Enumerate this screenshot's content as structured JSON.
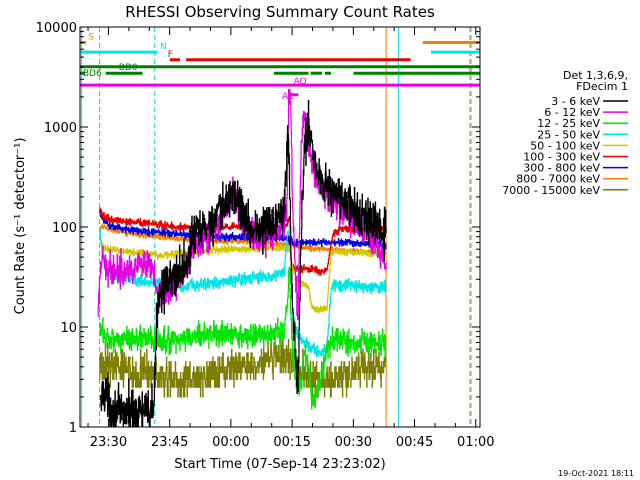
{
  "chart_data": {
    "type": "line",
    "title": "RHESSI Observing Summary Count Rates",
    "xlabel": "Start Time (07-Sep-14 23:23:02)",
    "ylabel": "Count Rate (s⁻¹ detector⁻¹)",
    "yscale": "log",
    "ylim": [
      1,
      10000
    ],
    "xlim_minutes_from_23_23_02": [
      0,
      98
    ],
    "x_ticks": [
      {
        "label": "23:30",
        "t": 6.97
      },
      {
        "label": "23:45",
        "t": 21.97
      },
      {
        "label": "00:00",
        "t": 36.97
      },
      {
        "label": "00:15",
        "t": 51.97
      },
      {
        "label": "00:30",
        "t": 66.97
      },
      {
        "label": "00:45",
        "t": 81.97
      },
      {
        "label": "01:00",
        "t": 96.97
      }
    ],
    "y_ticks": [
      "1",
      "10",
      "100",
      "1000",
      "10000"
    ],
    "footer_date": "19-Oct-2021 18:11",
    "legend": {
      "header": [
        "Det 1,3,6,9,",
        "FDecim 1"
      ],
      "entries": [
        {
          "label": "3 - 6 keV",
          "color": "#000000"
        },
        {
          "label": "6 - 12 keV",
          "color": "#e600e6"
        },
        {
          "label": "12 - 25 keV",
          "color": "#00e600"
        },
        {
          "label": "25 - 50 keV",
          "color": "#00e6e6"
        },
        {
          "label": "50 - 100 keV",
          "color": "#d2c800"
        },
        {
          "label": "100 - 300 keV",
          "color": "#e60000"
        },
        {
          "label": "300 - 800 keV",
          "color": "#0000e6"
        },
        {
          "label": "800 - 7000 keV",
          "color": "#f08200"
        },
        {
          "label": "7000 - 15000 keV",
          "color": "#7d7d00"
        }
      ]
    },
    "flag_bars": [
      {
        "label": "S",
        "color": "#f08200",
        "segments": [
          [
            0,
            1.5
          ]
        ],
        "level": 7000
      },
      {
        "label": "",
        "color": "#f08200",
        "segments": [
          [
            84,
            98
          ]
        ],
        "level": 7000
      },
      {
        "label": "N",
        "color": "#00e6e6",
        "segments": [
          [
            0,
            19
          ]
        ],
        "level": 5600
      },
      {
        "label": "",
        "color": "#00e6e6",
        "segments": [
          [
            86,
            98
          ]
        ],
        "level": 5600
      },
      {
        "label": "F",
        "color": "#e60000",
        "segments": [
          [
            22,
            24.5
          ],
          [
            26,
            81
          ]
        ],
        "level": 4700
      },
      {
        "label": "BD0",
        "color": "#008000",
        "segments": [
          [
            0,
            98
          ]
        ],
        "level": 4000
      },
      {
        "label": "BD6",
        "color": "#008000",
        "segments": [
          [
            0,
            1.3
          ],
          [
            6.3,
            15.3
          ],
          [
            47.5,
            56
          ],
          [
            60,
            61.5
          ],
          [
            67,
            98
          ]
        ],
        "level": 3450
      },
      {
        "label": "",
        "color": "#008000",
        "segments": [
          [
            56.5,
            59.3
          ]
        ],
        "level": 3450
      },
      {
        "label": "AQ",
        "color": "#e600e6",
        "segments": [
          [
            0,
            98
          ]
        ],
        "level": 2620
      },
      {
        "label": "A1",
        "color": "#e600e6",
        "segments": [
          [
            51.5,
            53.5
          ]
        ],
        "level": 2100
      }
    ],
    "vertical_markers": [
      {
        "t": 0.4,
        "color": "#00e6e6",
        "style": "solid"
      },
      {
        "t": 4.8,
        "color": "#f08200",
        "style": "dashed"
      },
      {
        "t": 18.3,
        "color": "#00e6e6",
        "style": "dashed"
      },
      {
        "t": 75.0,
        "color": "#f08200",
        "style": "solid"
      },
      {
        "t": 78.0,
        "color": "#00e6e6",
        "style": "solid"
      },
      {
        "t": 95.5,
        "color": "#00e6e6",
        "style": "dashed"
      },
      {
        "t": 95.8,
        "color": "#f08200",
        "style": "dashed"
      }
    ],
    "series": [
      {
        "name": "3 - 6 keV",
        "color": "#000000",
        "noise": 0.22,
        "x": [
          5,
          5.6,
          6.2,
          7,
          8,
          10,
          12,
          14,
          16,
          18,
          19,
          20,
          21.3,
          22,
          24,
          26,
          27,
          27.5,
          28,
          30,
          32,
          34,
          36,
          37.5,
          39,
          40.3,
          42,
          44,
          46,
          48,
          50,
          50.8,
          51.3,
          51.8,
          52.5,
          53.4,
          53.9,
          54.5,
          55,
          56,
          57,
          58,
          60,
          62,
          64,
          66,
          68,
          70,
          72,
          74,
          75
        ],
        "y": [
          1.5,
          2.5,
          2.2,
          1.8,
          1.5,
          1.4,
          1.5,
          1.5,
          1.4,
          1.5,
          18,
          28,
          25,
          28,
          35,
          42,
          60,
          80,
          85,
          95,
          110,
          130,
          180,
          220,
          180,
          120,
          95,
          95,
          105,
          120,
          170,
          850,
          300,
          30,
          8,
          2.2,
          30,
          200,
          700,
          1100,
          600,
          350,
          280,
          220,
          190,
          160,
          130,
          120,
          100,
          95,
          85
        ]
      },
      {
        "name": "6 - 12 keV",
        "color": "#e600e6",
        "noise": 0.15,
        "x": [
          4.4,
          5,
          5.4,
          6.2,
          8,
          10,
          12,
          14,
          16,
          18,
          19,
          20,
          21.3,
          22,
          24,
          26,
          27,
          28,
          30,
          32,
          34,
          36,
          37.3,
          39,
          40,
          42,
          44,
          46,
          48,
          50,
          50.7,
          51.1,
          51.5,
          52,
          52.8,
          53.4,
          53.8,
          54.2,
          54.9,
          55.5,
          56.5,
          58,
          60,
          62,
          64,
          66,
          68,
          70,
          72,
          74,
          75
        ],
        "y": [
          12,
          42,
          45,
          40,
          38,
          38,
          39,
          40,
          40,
          36,
          22,
          24,
          21,
          22,
          30,
          37,
          45,
          60,
          70,
          85,
          110,
          160,
          220,
          150,
          110,
          85,
          75,
          80,
          95,
          110,
          160,
          1900,
          2200,
          200,
          28,
          14,
          120,
          700,
          1400,
          1000,
          500,
          300,
          230,
          180,
          150,
          130,
          110,
          90,
          70,
          50,
          40
        ]
      },
      {
        "name": "12 - 25 keV",
        "color": "#00e600",
        "noise": 0.12,
        "x": [
          4.8,
          5.5,
          6.5,
          10,
          15,
          20,
          25,
          30,
          35,
          40,
          45,
          48,
          50,
          50.9,
          51.3,
          51.6,
          52.2,
          53,
          54,
          55,
          56,
          56.7,
          57.5,
          59,
          60.5,
          62,
          66,
          70,
          75
        ],
        "y": [
          9,
          9,
          8,
          7.5,
          8,
          7,
          7.5,
          8.5,
          8.5,
          8,
          8.5,
          8.5,
          9,
          20,
          40,
          15,
          5,
          3,
          2.5,
          6,
          4,
          2,
          1.8,
          3,
          6,
          7.5,
          7,
          7,
          6.5
        ]
      },
      {
        "name": "25 - 50 keV",
        "color": "#00e6e6",
        "noise": 0.06,
        "x": [
          4.8,
          5.5,
          7,
          10,
          15,
          20,
          25,
          30,
          35,
          40,
          45,
          48,
          50,
          50.8,
          51.5,
          52,
          53,
          54,
          56,
          57,
          59,
          60.5,
          61.5,
          63,
          66,
          70,
          75
        ],
        "y": [
          95,
          50,
          35,
          31,
          29,
          28,
          26,
          27,
          28,
          30,
          31,
          33,
          35,
          80,
          120,
          14,
          9,
          7.5,
          6.5,
          6,
          5.5,
          6,
          25,
          26,
          26,
          25,
          25
        ]
      },
      {
        "name": "50 - 100 keV",
        "color": "#d2c800",
        "noise": 0.035,
        "x": [
          4.8,
          5.5,
          7,
          10,
          15,
          20,
          25,
          30,
          35,
          40,
          45,
          48,
          50,
          50.8,
          51.5,
          52,
          53,
          54,
          56,
          56.7,
          57.5,
          59,
          60.5,
          61.5,
          63,
          66,
          70,
          75
        ],
        "y": [
          80,
          65,
          60,
          58,
          55,
          52,
          55,
          57,
          60,
          60,
          62,
          62,
          62,
          60,
          58,
          40,
          32,
          28,
          25,
          17,
          15,
          15,
          16,
          55,
          56,
          55,
          55,
          55
        ]
      },
      {
        "name": "100 - 300 keV",
        "color": "#e60000",
        "noise": 0.035,
        "x": [
          4.8,
          5.5,
          7,
          10,
          15,
          20,
          25,
          30,
          35,
          40,
          45,
          48,
          50,
          50.8,
          51.3,
          51.8,
          53,
          55,
          57,
          59,
          60.5,
          62,
          64,
          66,
          70,
          75
        ],
        "y": [
          150,
          130,
          120,
          115,
          110,
          105,
          100,
          100,
          100,
          100,
          98,
          95,
          98,
          110,
          120,
          40,
          38,
          38,
          38,
          36,
          38,
          85,
          95,
          95,
          95,
          95
        ]
      },
      {
        "name": "300 - 800 keV",
        "color": "#0000e6",
        "noise": 0.035,
        "x": [
          4.8,
          5.5,
          7,
          10,
          15,
          20,
          25,
          30,
          35,
          40,
          45,
          50,
          51.5,
          52.5,
          55,
          60,
          65,
          70,
          75
        ],
        "y": [
          150,
          120,
          105,
          98,
          90,
          88,
          85,
          82,
          80,
          80,
          78,
          78,
          74,
          70,
          70,
          70,
          70,
          68,
          65
        ]
      },
      {
        "name": "800 - 7000 keV",
        "color": "#f08200",
        "noise": 0.025,
        "x": [
          4.8,
          5.5,
          7,
          10,
          15,
          20,
          25,
          30,
          35,
          40,
          45,
          50,
          52,
          55,
          60,
          65,
          70,
          75
        ],
        "y": [
          95,
          100,
          95,
          90,
          83,
          80,
          76,
          74,
          72,
          72,
          70,
          67,
          66,
          62,
          60,
          58,
          57,
          56
        ]
      },
      {
        "name": "7000 - 15000 keV",
        "color": "#7d7d00",
        "noise": 0.18,
        "quantize": 0.5,
        "x": [
          4.8,
          5.5,
          7,
          10,
          13,
          16,
          20,
          25,
          30,
          35,
          40,
          45,
          48,
          50,
          52,
          54,
          55,
          58,
          60,
          63,
          66,
          70,
          75
        ],
        "y": [
          4.5,
          3.5,
          4.5,
          4,
          3.5,
          3.5,
          3,
          3,
          3,
          3.5,
          4,
          4.5,
          5,
          5,
          4.5,
          3.5,
          3.5,
          3,
          3,
          3,
          3.5,
          4,
          4
        ]
      }
    ]
  }
}
